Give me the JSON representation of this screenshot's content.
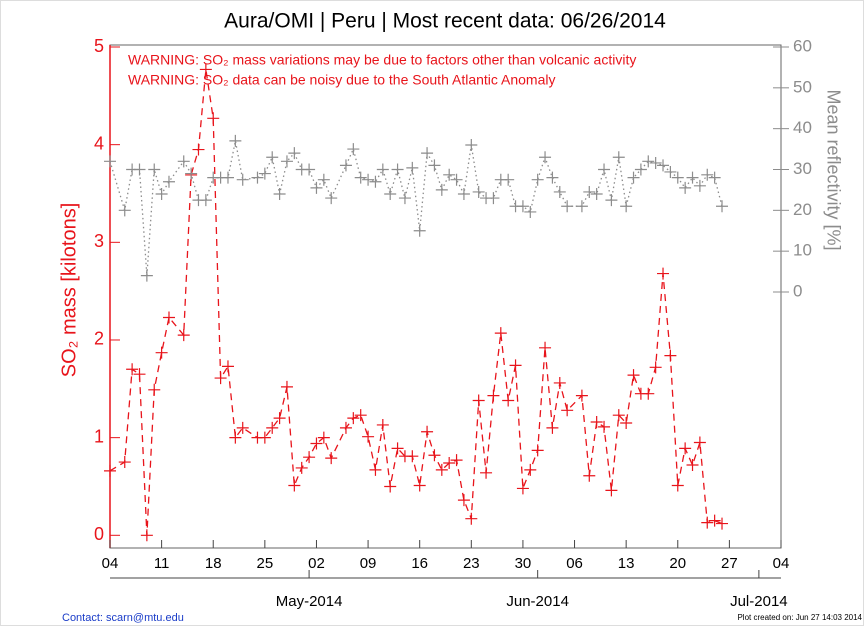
{
  "chart_data": {
    "type": "line",
    "title": "Aura/OMI | Peru | Most recent data: 06/26/2014",
    "annotations": [
      "WARNING: SO₂ mass variations may be due to factors other than volcanic activity",
      "WARNING: SO₂ data can be noisy due to the South Atlantic Anomaly"
    ],
    "ylabel": "SO₂ mass [kilotons]",
    "y2label": "Mean reflectivity [%]",
    "footer_left": "Contact: scarn@mtu.edu",
    "footer_right": "Plot created on: Jun 27 14:03 2014",
    "xlim": [
      "2014-04-04",
      "2014-07-04"
    ],
    "xticks": [
      {
        "value": "2014-04-04",
        "label": "04"
      },
      {
        "value": "2014-04-11",
        "label": "11"
      },
      {
        "value": "2014-04-18",
        "label": "18"
      },
      {
        "value": "2014-04-25",
        "label": "25"
      },
      {
        "value": "2014-05-02",
        "label": "02"
      },
      {
        "value": "2014-05-09",
        "label": "09"
      },
      {
        "value": "2014-05-16",
        "label": "16"
      },
      {
        "value": "2014-05-23",
        "label": "23"
      },
      {
        "value": "2014-05-30",
        "label": "30"
      },
      {
        "value": "2014-06-06",
        "label": "06"
      },
      {
        "value": "2014-06-13",
        "label": "13"
      },
      {
        "value": "2014-06-20",
        "label": "20"
      },
      {
        "value": "2014-06-27",
        "label": "27"
      },
      {
        "value": "2014-07-04",
        "label": "04"
      }
    ],
    "xticks2": [
      {
        "value": "2014-05-01",
        "label": "May-2014"
      },
      {
        "value": "2014-06-01",
        "label": "Jun-2014"
      },
      {
        "value": "2014-07-01",
        "label": "Jul-2014"
      }
    ],
    "ylim": [
      -0.13,
      5
    ],
    "yticks": [
      0,
      1,
      2,
      3,
      4,
      5
    ],
    "y2lim": [
      -62.7,
      60
    ],
    "y2ticks": [
      0,
      10,
      20,
      30,
      40,
      50,
      60
    ],
    "x": [
      "2014-04-04",
      "2014-04-06",
      "2014-04-07",
      "2014-04-08",
      "2014-04-09",
      "2014-04-10",
      "2014-04-11",
      "2014-04-12",
      "2014-04-14",
      "2014-04-15",
      "2014-04-16",
      "2014-04-17",
      "2014-04-18",
      "2014-04-19",
      "2014-04-20",
      "2014-04-21",
      "2014-04-22",
      "2014-04-24",
      "2014-04-25",
      "2014-04-26",
      "2014-04-27",
      "2014-04-28",
      "2014-04-29",
      "2014-04-30",
      "2014-05-01",
      "2014-05-02",
      "2014-05-03",
      "2014-05-04",
      "2014-05-06",
      "2014-05-07",
      "2014-05-08",
      "2014-05-09",
      "2014-05-10",
      "2014-05-11",
      "2014-05-12",
      "2014-05-13",
      "2014-05-14",
      "2014-05-15",
      "2014-05-16",
      "2014-05-17",
      "2014-05-18",
      "2014-05-19",
      "2014-05-20",
      "2014-05-21",
      "2014-05-22",
      "2014-05-23",
      "2014-05-24",
      "2014-05-25",
      "2014-05-26",
      "2014-05-27",
      "2014-05-28",
      "2014-05-29",
      "2014-05-30",
      "2014-05-31",
      "2014-06-01",
      "2014-06-02",
      "2014-06-03",
      "2014-06-04",
      "2014-06-05",
      "2014-06-07",
      "2014-06-08",
      "2014-06-09",
      "2014-06-10",
      "2014-06-11",
      "2014-06-12",
      "2014-06-13",
      "2014-06-14",
      "2014-06-15",
      "2014-06-16",
      "2014-06-17",
      "2014-06-18",
      "2014-06-19",
      "2014-06-20",
      "2014-06-21",
      "2014-06-22",
      "2014-06-23",
      "2014-06-24",
      "2014-06-25",
      "2014-06-26"
    ],
    "series": [
      {
        "color": "#e8141b",
        "linestyle": "dashed",
        "marker": "+",
        "axis": "y",
        "values": [
          0.66,
          0.75,
          1.7,
          1.65,
          0.0,
          1.49,
          1.87,
          2.23,
          2.05,
          3.69,
          3.95,
          4.77,
          4.27,
          1.61,
          1.73,
          1.0,
          1.1,
          1.0,
          1.0,
          1.1,
          1.2,
          1.52,
          0.51,
          0.69,
          0.8,
          0.94,
          1.0,
          0.79,
          1.1,
          1.2,
          1.23,
          1.01,
          0.67,
          1.13,
          0.5,
          0.89,
          0.81,
          0.81,
          0.51,
          1.06,
          0.82,
          0.67,
          0.74,
          0.77,
          0.36,
          0.17,
          1.38,
          0.64,
          1.43,
          2.07,
          1.38,
          1.74,
          0.48,
          0.67,
          0.87,
          1.92,
          1.1,
          1.56,
          1.28,
          1.43,
          0.61,
          1.16,
          1.11,
          0.46,
          1.23,
          1.15,
          1.64,
          1.45,
          1.45,
          1.72,
          2.68,
          1.84,
          0.51,
          0.89,
          0.72,
          0.95,
          0.13,
          0.15,
          0.12
        ]
      },
      {
        "color": "#8c8c8c",
        "linestyle": "dotted",
        "marker": "+",
        "axis": "y2",
        "values": [
          32,
          20,
          30,
          30,
          4,
          30,
          24,
          27,
          32,
          29,
          22.5,
          22.5,
          28,
          28,
          28,
          37,
          27.5,
          28,
          29,
          33,
          24,
          32,
          34,
          30,
          30,
          25.5,
          27.5,
          23,
          31,
          35,
          28,
          27.5,
          27,
          30,
          24,
          30,
          23,
          30.4,
          15,
          34,
          31,
          25,
          28.7,
          27.5,
          24,
          36,
          24.5,
          23,
          23,
          27.5,
          27.5,
          21,
          21,
          19.6,
          27.5,
          33,
          28,
          24.5,
          21,
          21,
          24.5,
          24,
          30,
          22.5,
          33,
          21,
          28,
          30,
          32,
          31.6,
          31,
          29.4,
          28,
          25.5,
          28,
          26,
          28.7,
          28,
          21
        ]
      }
    ],
    "ycolor": "#e8141b",
    "y2color": "#8c8c8c"
  }
}
